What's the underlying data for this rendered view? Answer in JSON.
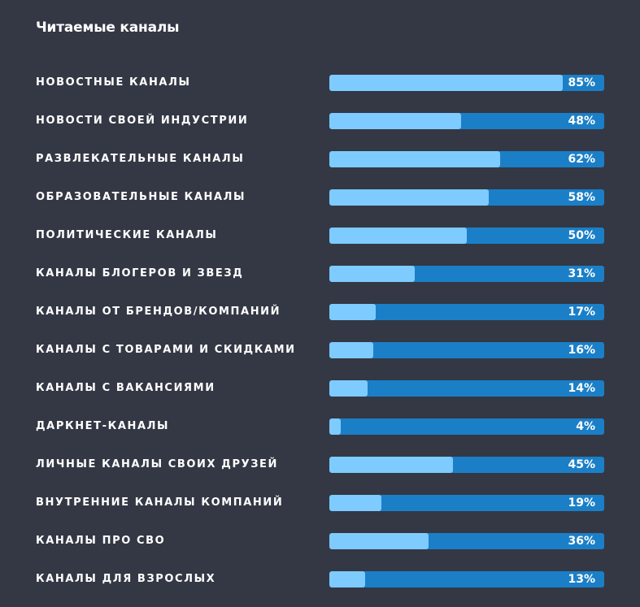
{
  "chart_data": {
    "type": "bar",
    "orientation": "horizontal",
    "title": "Читаемые каналы",
    "categories": [
      "НОВОСТНЫЕ КАНАЛЫ",
      "НОВОСТИ СВОЕЙ ИНДУСТРИИ",
      "РАЗВЛЕКАТЕЛЬНЫЕ КАНАЛЫ",
      "ОБРАЗОВАТЕЛЬНЫЕ КАНАЛЫ",
      "ПОЛИТИЧЕСКИЕ КАНАЛЫ",
      "КАНАЛЫ БЛОГЕРОВ И ЗВЕЗД",
      "КАНАЛЫ ОТ БРЕНДОВ/КОМПАНИЙ",
      "КАНАЛЫ С ТОВАРАМИ И СКИДКАМИ",
      "КАНАЛЫ С ВАКАНСИЯМИ",
      "ДАРКНЕТ-КАНАЛЫ",
      "ЛИЧНЫЕ КАНАЛЫ СВОИХ ДРУЗЕЙ",
      "ВНУТРЕННИЕ КАНАЛЫ КОМПАНИЙ",
      "КАНАЛЫ ПРО СВО",
      "КАНАЛЫ ДЛЯ ВЗРОСЛЫХ"
    ],
    "values": [
      85,
      48,
      62,
      58,
      50,
      31,
      17,
      16,
      14,
      4,
      45,
      19,
      36,
      13
    ],
    "value_labels": [
      "85%",
      "48%",
      "62%",
      "58%",
      "50%",
      "31%",
      "17%",
      "16%",
      "14%",
      "4%",
      "45%",
      "19%",
      "36%",
      "13%"
    ],
    "xlim": [
      0,
      100
    ],
    "grid": false,
    "colors": {
      "background": "#333844",
      "track": "#1b7fc8",
      "fill": "#7ecbff",
      "text": "#ffffff"
    }
  }
}
